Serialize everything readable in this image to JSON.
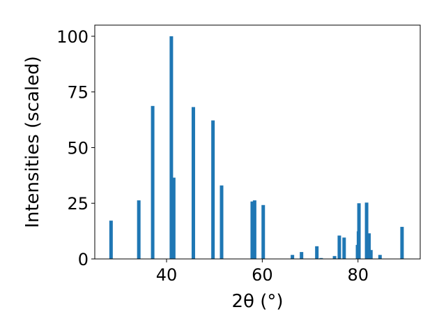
{
  "chart_data": {
    "type": "bar",
    "xlabel": "2θ (°)",
    "ylabel": "Intensities (scaled)",
    "xlim": [
      25,
      93
    ],
    "ylim": [
      0,
      105
    ],
    "x_ticks": [
      40,
      60,
      80
    ],
    "y_ticks": [
      0,
      25,
      50,
      75,
      100
    ],
    "bar_color": "#1f77b4",
    "grid": false,
    "x": [
      28.4,
      34.2,
      37.1,
      41.0,
      41.5,
      45.6,
      49.7,
      51.5,
      57.9,
      58.4,
      60.2,
      66.3,
      68.2,
      71.4,
      72.3,
      75.1,
      76.1,
      77.1,
      79.9,
      80.1,
      80.2,
      81.8,
      82.3,
      82.7,
      84.6,
      89.2
    ],
    "values": [
      17.2,
      26.3,
      68.7,
      100,
      36.5,
      68.2,
      62.2,
      33.0,
      25.8,
      26.3,
      24.2,
      1.8,
      3.1,
      5.7,
      0.4,
      1.3,
      10.5,
      9.6,
      6.3,
      12.4,
      25.0,
      25.3,
      11.5,
      4.0,
      1.8,
      14.4
    ]
  }
}
